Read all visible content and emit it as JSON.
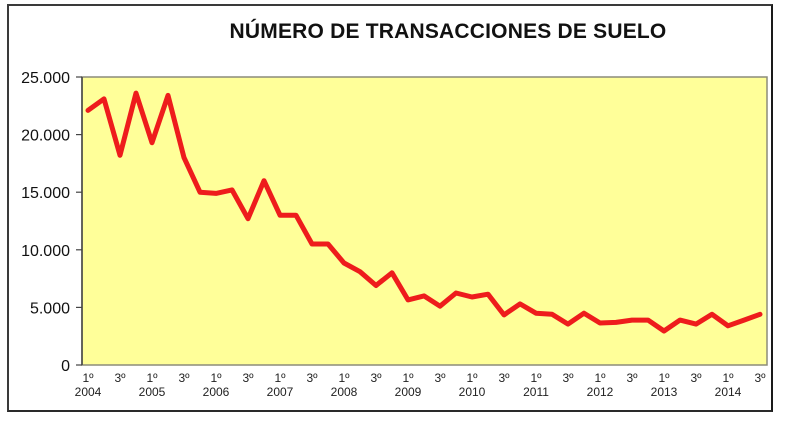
{
  "chart_data": {
    "type": "line",
    "title": "NÚMERO DE TRANSACCIONES DE SUELO",
    "xlabel": "",
    "ylabel": "",
    "ylim": [
      0,
      25000
    ],
    "yticks": [
      0,
      5000,
      10000,
      15000,
      20000,
      25000
    ],
    "ytick_labels": [
      "0",
      "5.000",
      "10.000",
      "15.000",
      "20.000",
      "25.000"
    ],
    "x": [
      "2004 T1",
      "2004 T2",
      "2004 T3",
      "2004 T4",
      "2005 T1",
      "2005 T2",
      "2005 T3",
      "2005 T4",
      "2006 T1",
      "2006 T2",
      "2006 T3",
      "2006 T4",
      "2007 T1",
      "2007 T2",
      "2007 T3",
      "2007 T4",
      "2008 T1",
      "2008 T2",
      "2008 T3",
      "2008 T4",
      "2009 T1",
      "2009 T2",
      "2009 T3",
      "2009 T4",
      "2010 T1",
      "2010 T2",
      "2010 T3",
      "2010 T4",
      "2011 T1",
      "2011 T2",
      "2011 T3",
      "2011 T4",
      "2012 T1",
      "2012 T2",
      "2012 T3",
      "2012 T4",
      "2013 T1",
      "2013 T2",
      "2013 T3",
      "2013 T4",
      "2014 T1",
      "2014 T2",
      "2014 T3"
    ],
    "xtick_labels": [
      {
        "quarter": "1º",
        "year": "2004"
      },
      {
        "quarter": "3º",
        "year": ""
      },
      {
        "quarter": "1º",
        "year": "2005"
      },
      {
        "quarter": "3º",
        "year": ""
      },
      {
        "quarter": "1º",
        "year": "2006"
      },
      {
        "quarter": "3º",
        "year": ""
      },
      {
        "quarter": "1º",
        "year": "2007"
      },
      {
        "quarter": "3º",
        "year": ""
      },
      {
        "quarter": "1º",
        "year": "2008"
      },
      {
        "quarter": "3º",
        "year": ""
      },
      {
        "quarter": "1º",
        "year": "2009"
      },
      {
        "quarter": "3º",
        "year": ""
      },
      {
        "quarter": "1º",
        "year": "2010"
      },
      {
        "quarter": "3º",
        "year": ""
      },
      {
        "quarter": "1º",
        "year": "2011"
      },
      {
        "quarter": "3º",
        "year": ""
      },
      {
        "quarter": "1º",
        "year": "2012"
      },
      {
        "quarter": "3º",
        "year": ""
      },
      {
        "quarter": "1º",
        "year": "2013"
      },
      {
        "quarter": "3º",
        "year": ""
      },
      {
        "quarter": "1º",
        "year": "2014"
      },
      {
        "quarter": "3º",
        "year": ""
      }
    ],
    "series": [
      {
        "name": "Número de transacciones de suelo",
        "color": "#ee1c1c",
        "values": [
          22100,
          23100,
          18200,
          23600,
          19300,
          23400,
          18000,
          15000,
          14900,
          15200,
          12700,
          16000,
          13000,
          13000,
          10500,
          10500,
          8850,
          8100,
          6900,
          8000,
          5650,
          6000,
          5100,
          6250,
          5900,
          6150,
          4350,
          5300,
          4500,
          4400,
          3550,
          4500,
          3650,
          3700,
          3900,
          3900,
          2950,
          3900,
          3550,
          4400,
          3400,
          3900,
          4400
        ]
      }
    ],
    "grid": false,
    "legend": null,
    "plot_background": "#ffff99"
  }
}
